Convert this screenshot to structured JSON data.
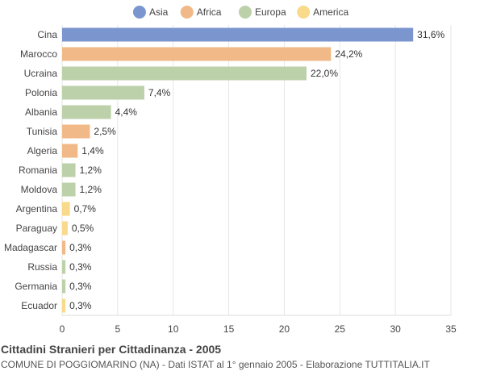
{
  "chart_data": {
    "type": "bar",
    "orientation": "horizontal",
    "title": "Cittadini Stranieri per Cittadinanza - 2005",
    "subtitle": "COMUNE DI POGGIOMARINO (NA) - Dati ISTAT al 1° gennaio 2005 - Elaborazione TUTTITALIA.IT",
    "legend": {
      "position": "top",
      "entries": [
        {
          "name": "Asia",
          "color": "#7b96cf"
        },
        {
          "name": "Africa",
          "color": "#f0b987"
        },
        {
          "name": "Europa",
          "color": "#bcd0aa"
        },
        {
          "name": "America",
          "color": "#f9d98a"
        }
      ]
    },
    "categories": [
      "Cina",
      "Marocco",
      "Ucraina",
      "Polonia",
      "Albania",
      "Tunisia",
      "Algeria",
      "Romania",
      "Moldova",
      "Argentina",
      "Paraguay",
      "Madagascar",
      "Russia",
      "Germania",
      "Ecuador"
    ],
    "values": [
      31.6,
      24.2,
      22.0,
      7.4,
      4.4,
      2.5,
      1.4,
      1.2,
      1.2,
      0.7,
      0.5,
      0.3,
      0.3,
      0.3,
      0.3
    ],
    "value_labels": [
      "31,6%",
      "24,2%",
      "22,0%",
      "7,4%",
      "4,4%",
      "2,5%",
      "1,4%",
      "1,2%",
      "1,2%",
      "0,7%",
      "0,5%",
      "0,3%",
      "0,3%",
      "0,3%",
      "0,3%"
    ],
    "groups": [
      "Asia",
      "Africa",
      "Europa",
      "Europa",
      "Europa",
      "Africa",
      "Africa",
      "Europa",
      "Europa",
      "America",
      "America",
      "Africa",
      "Europa",
      "Europa",
      "America"
    ],
    "xlim": [
      0,
      35
    ],
    "xticks": [
      0,
      5,
      10,
      15,
      20,
      25,
      30,
      35
    ],
    "grid": true
  }
}
